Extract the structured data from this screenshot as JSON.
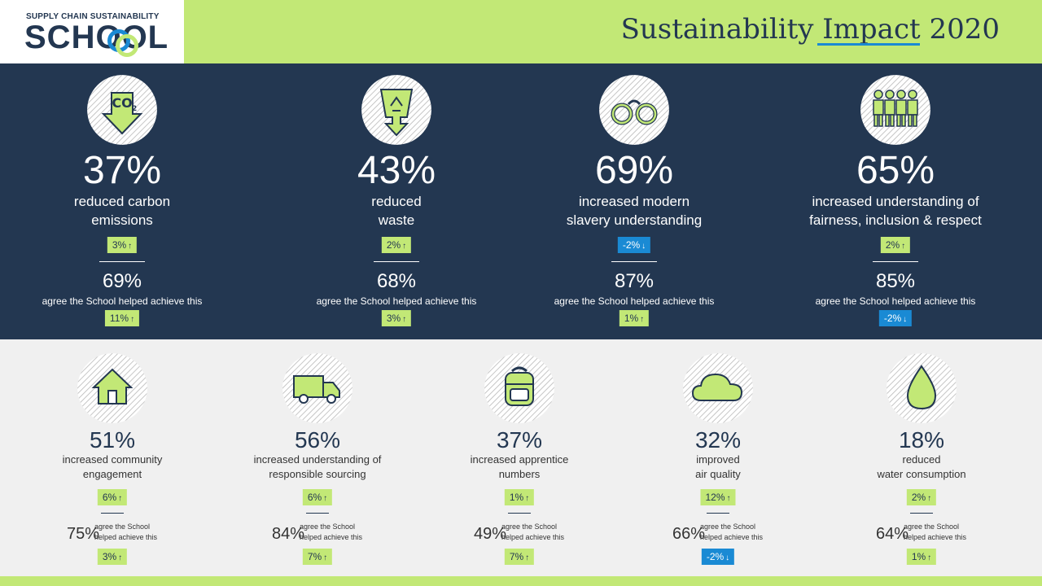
{
  "header": {
    "logo_line1": "SUPPLY CHAIN SUSTAINABILITY",
    "logo_line2": "SCHOOL",
    "title": "Sustainability Impact 2020"
  },
  "colors": {
    "navy": "#233751",
    "lime": "#c2e876",
    "blue": "#1a8ad4",
    "light": "#f0f0f0"
  },
  "top_metrics": [
    {
      "icon": "co2-down-arrow-icon",
      "pct": "37%",
      "desc": [
        "reduced carbon",
        "emissions"
      ],
      "change": "3%",
      "dir": "up",
      "sub_pct": "69%",
      "sub_text": "agree the School helped achieve this",
      "sub_change": "11%",
      "sub_dir": "up"
    },
    {
      "icon": "recycling-bin-icon",
      "pct": "43%",
      "desc": [
        "reduced",
        "waste"
      ],
      "change": "2%",
      "dir": "up",
      "sub_pct": "68%",
      "sub_text": "agree the School helped achieve this",
      "sub_change": "3%",
      "sub_dir": "up"
    },
    {
      "icon": "handcuffs-icon",
      "pct": "69%",
      "desc": [
        "increased modern",
        "slavery understanding"
      ],
      "change": "-2%",
      "dir": "down",
      "sub_pct": "87%",
      "sub_text": "agree the School helped achieve this",
      "sub_change": "1%",
      "sub_dir": "up"
    },
    {
      "icon": "people-group-icon",
      "pct": "65%",
      "desc": [
        "increased understanding of",
        "fairness, inclusion & respect"
      ],
      "change": "2%",
      "dir": "up",
      "sub_pct": "85%",
      "sub_text": "agree the School helped achieve this",
      "sub_change": "-2%",
      "sub_dir": "down"
    }
  ],
  "bottom_metrics": [
    {
      "icon": "house-icon",
      "pct": "51%",
      "desc": [
        "increased community",
        "engagement"
      ],
      "change": "6%",
      "dir": "up",
      "sub_pct": "75%",
      "sub_text": [
        "agree the School",
        "helped achieve this"
      ],
      "sub_change": "3%",
      "sub_dir": "up"
    },
    {
      "icon": "truck-icon",
      "pct": "56%",
      "desc": [
        "increased understanding of",
        "responsible sourcing"
      ],
      "change": "6%",
      "dir": "up",
      "sub_pct": "84%",
      "sub_text": [
        "agree the School",
        "helped achieve this"
      ],
      "sub_change": "7%",
      "sub_dir": "up"
    },
    {
      "icon": "backpack-icon",
      "pct": "37%",
      "desc": [
        "increased apprentice",
        "numbers"
      ],
      "change": "1%",
      "dir": "up",
      "sub_pct": "49%",
      "sub_text": [
        "agree the School",
        "helped achieve this"
      ],
      "sub_change": "7%",
      "sub_dir": "up"
    },
    {
      "icon": "cloud-icon",
      "pct": "32%",
      "desc": [
        "improved",
        "air quality"
      ],
      "change": "12%",
      "dir": "up",
      "sub_pct": "66%",
      "sub_text": [
        "agree the School",
        "helped achieve this"
      ],
      "sub_change": "-2%",
      "sub_dir": "down"
    },
    {
      "icon": "water-drop-icon",
      "pct": "18%",
      "desc": [
        "reduced",
        "water consumption"
      ],
      "change": "2%",
      "dir": "up",
      "sub_pct": "64%",
      "sub_text": [
        "agree the School",
        "helped achieve this"
      ],
      "sub_change": "1%",
      "sub_dir": "up"
    }
  ]
}
